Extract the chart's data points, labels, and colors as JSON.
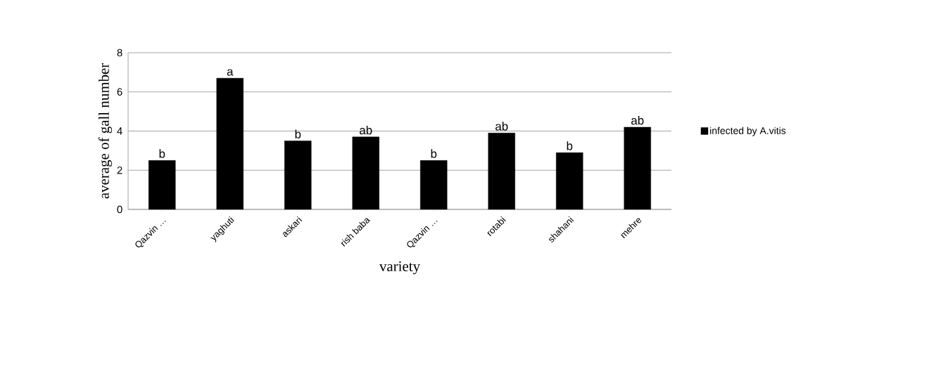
{
  "chart_data": {
    "type": "bar",
    "categories": [
      "Qazvin …",
      "yaghuti",
      "askari",
      "rish baba",
      "Qazvin …",
      "rotabi",
      "shahani",
      "mehre"
    ],
    "series": [
      {
        "name": "infected by A.vitis",
        "color": "#000000",
        "values": [
          2.5,
          6.7,
          3.5,
          3.7,
          2.5,
          3.9,
          2.9,
          4.2
        ],
        "value_labels": [
          "b",
          "a",
          "b",
          "ab",
          "b",
          "ab",
          "b",
          "ab"
        ]
      }
    ],
    "xlabel": "variety",
    "ylabel": "average of gall number",
    "ylim": [
      0,
      8
    ],
    "yticks": [
      0,
      2,
      4,
      6,
      8
    ],
    "grid": "y",
    "legend": "right"
  }
}
